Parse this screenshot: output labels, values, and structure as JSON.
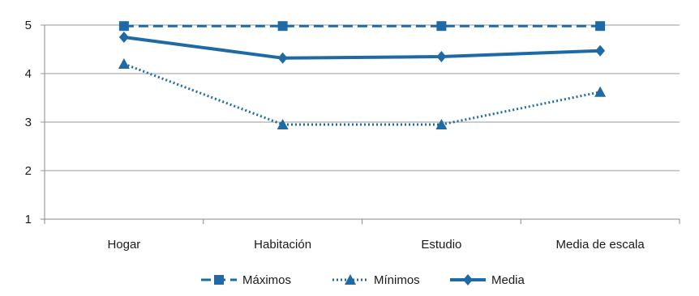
{
  "chart_data": {
    "type": "line",
    "categories": [
      "Hogar",
      "Habitación",
      "Estudio",
      "Media de escala"
    ],
    "ylim": [
      1,
      5
    ],
    "yticks": [
      1,
      2,
      3,
      4,
      5
    ],
    "grid": true,
    "legend_position": "bottom",
    "color": "#1f6aa5",
    "series": [
      {
        "name": "Máximos",
        "values": [
          4.98,
          4.98,
          4.98,
          4.98
        ],
        "line_style": "dashed",
        "marker": "square"
      },
      {
        "name": "Mínimos",
        "values": [
          4.2,
          2.95,
          2.95,
          3.62
        ],
        "line_style": "dotted",
        "marker": "triangle"
      },
      {
        "name": "Media",
        "values": [
          4.75,
          4.32,
          4.35,
          4.47
        ],
        "line_style": "solid",
        "marker": "diamond"
      }
    ]
  }
}
